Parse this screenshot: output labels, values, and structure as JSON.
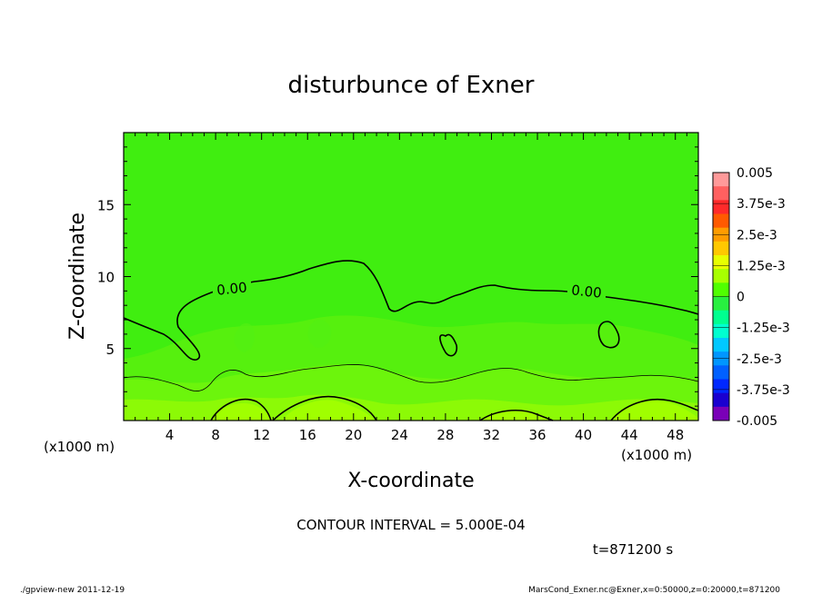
{
  "chart_data": {
    "type": "heatmap",
    "title": "disturbunce of Exner",
    "xlabel": "X-coordinate",
    "ylabel": "Z-coordinate",
    "x_unit_left": "(x1000 m)",
    "x_unit_right": "(x1000 m)",
    "xlim": [
      0,
      50
    ],
    "ylim": [
      0,
      20
    ],
    "x_ticks": [
      "4",
      "8",
      "12",
      "16",
      "20",
      "24",
      "28",
      "32",
      "36",
      "40",
      "44",
      "48"
    ],
    "y_ticks": [
      "5",
      "10",
      "15"
    ],
    "colorbar": {
      "labels": [
        "0.005",
        "3.75e-3",
        "2.5e-3",
        "1.25e-3",
        "0",
        "-1.25e-3",
        "-2.5e-3",
        "-3.75e-3",
        "-0.005"
      ],
      "colors": [
        "#ff9a9a",
        "#ff6060",
        "#ff2a2a",
        "#ff5a00",
        "#ff9c00",
        "#ffc800",
        "#e8ff00",
        "#a8ff00",
        "#50ff00",
        "#28f040",
        "#00ff90",
        "#00ffd0",
        "#00c8ff",
        "#0096ff",
        "#0060ff",
        "#0028ff",
        "#1a00d0",
        "#7a00b8"
      ]
    },
    "contour_labels": [
      "0.00",
      "0.00"
    ],
    "contour_interval": "CONTOUR INTERVAL = 5.000E-04",
    "time": "t=871200 s"
  },
  "footer": {
    "left": "./gpview-new   2011-12-19",
    "right": "MarsCond_Exner.nc@Exner,x=0:50000,z=0:20000,t=871200"
  },
  "colors": {
    "field": "#40ee10",
    "field_mid": "#5af010",
    "field_low": "#7cf80c",
    "field_warm": "#a0ff00"
  }
}
